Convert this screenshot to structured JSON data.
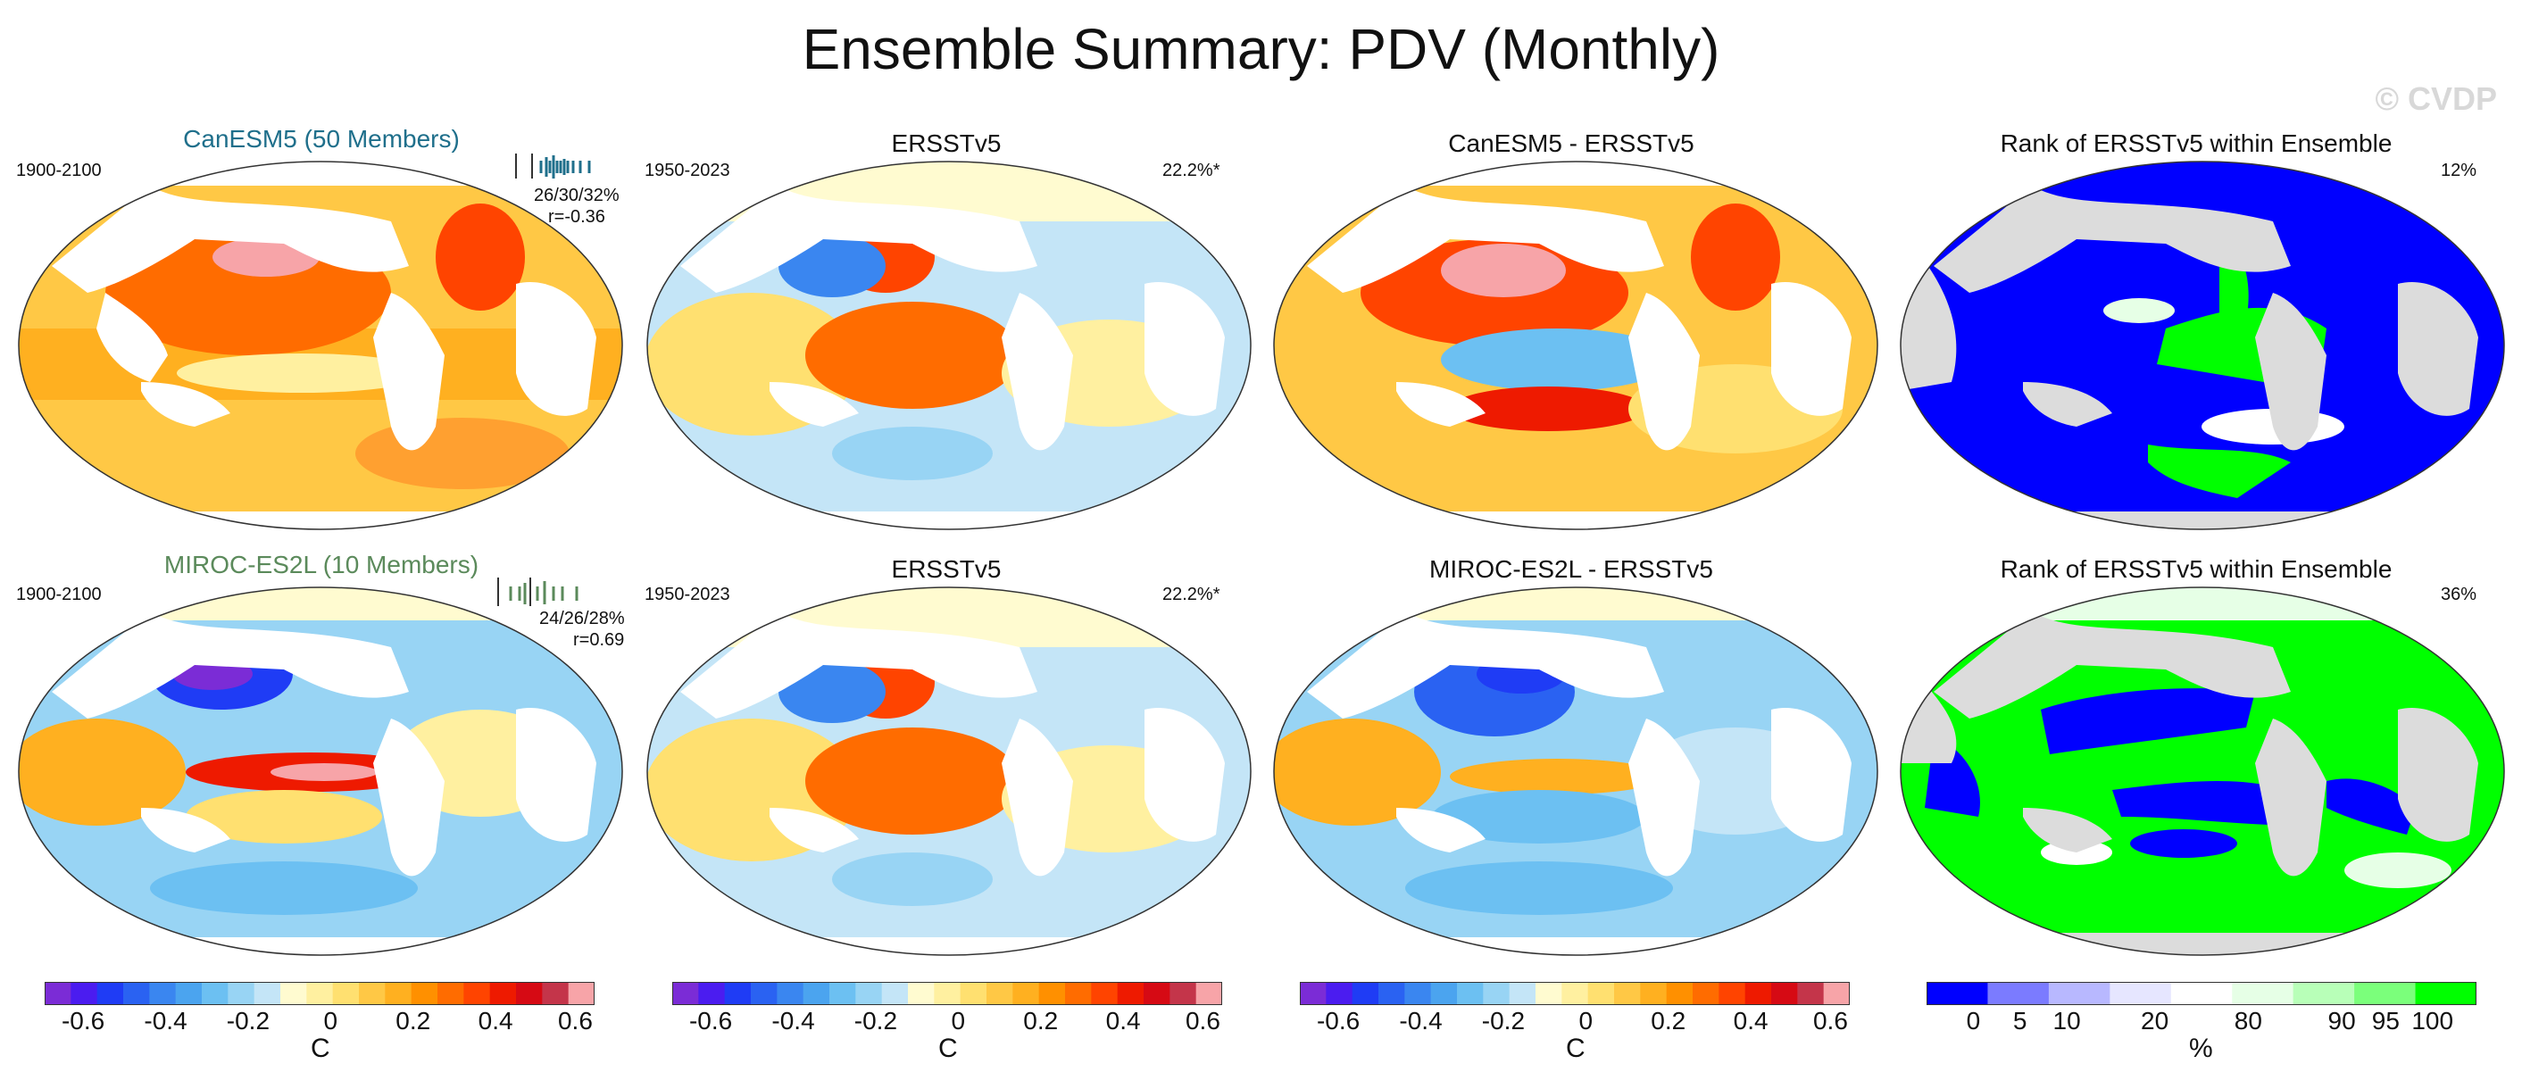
{
  "title": "Ensemble Summary: PDV (Monthly)",
  "watermark": "© CVDP",
  "rows": [
    {
      "model": {
        "name": "CanESM5 (50 Members)",
        "color": "#1f6f8b",
        "period": "1900-2100",
        "stats": "26/30/32%",
        "corr": "r=-0.36"
      },
      "obs": {
        "name": "ERSSTv5",
        "period": "1950-2023",
        "pct": "22.2%*"
      },
      "diff": {
        "name": "CanESM5 - ERSSTv5"
      },
      "rank": {
        "name": "Rank of ERSSTv5 within Ensemble",
        "pct": "12%"
      }
    },
    {
      "model": {
        "name": "MIROC-ES2L (10 Members)",
        "color": "#5b8a5b",
        "period": "1900-2100",
        "stats": "24/26/28%",
        "corr": "r=0.69"
      },
      "obs": {
        "name": "ERSSTv5",
        "period": "1950-2023",
        "pct": "22.2%*"
      },
      "diff": {
        "name": "MIROC-ES2L - ERSSTv5"
      },
      "rank": {
        "name": "Rank of ERSSTv5 within Ensemble",
        "pct": "36%"
      }
    }
  ],
  "colorbar_sst": {
    "colors": [
      "#7b2cd6",
      "#4b1cf0",
      "#1f3cf5",
      "#2a62f2",
      "#3a86f0",
      "#4ba4ef",
      "#6cc0f2",
      "#98d4f4",
      "#c4e5f7",
      "#fffbd0",
      "#fff0a0",
      "#ffe070",
      "#ffc845",
      "#ffb020",
      "#ff9000",
      "#ff6c00",
      "#ff4400",
      "#ee1a00",
      "#d60a14",
      "#c4354a",
      "#f7a4a8"
    ],
    "labels": [
      "-0.6",
      "-0.4",
      "-0.2",
      "0",
      "0.2",
      "0.4",
      "0.6"
    ],
    "unit": "C"
  },
  "colorbar_rank": {
    "colors": [
      "#0000ff",
      "#7b7bff",
      "#b8b8ff",
      "#e6e6ff",
      "#ffffff",
      "#e6ffe6",
      "#b8ffb8",
      "#7bff7b",
      "#00ff00"
    ],
    "labels": [
      "0",
      "5",
      "10",
      "20",
      "80",
      "90",
      "95",
      "100"
    ],
    "unit": "%"
  }
}
